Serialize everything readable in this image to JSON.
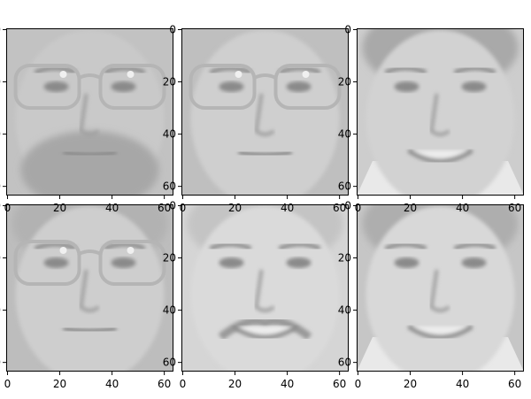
{
  "figure": {
    "panels": [
      {
        "id": "face-1",
        "row": 0,
        "col": 0,
        "subject": "man with glasses and stubble beard",
        "skin": "#c9c9c9",
        "hair": "#aaaaaa",
        "bg": "#c2c2c2",
        "glasses": true,
        "beard": true,
        "mustache": false,
        "smile": false,
        "hair_top": false,
        "collar": false
      },
      {
        "id": "face-2",
        "row": 0,
        "col": 1,
        "subject": "bald man with large glasses",
        "skin": "#cfcfcf",
        "hair": "#bdbdbd",
        "bg": "#bfbfbf",
        "glasses": true,
        "beard": false,
        "mustache": false,
        "smile": false,
        "hair_top": false,
        "collar": false
      },
      {
        "id": "face-3",
        "row": 0,
        "col": 2,
        "subject": "smiling woman",
        "skin": "#d2d2d2",
        "hair": "#a9a9a9",
        "bg": "#cdcdcd",
        "glasses": false,
        "beard": false,
        "mustache": false,
        "smile": true,
        "hair_top": true,
        "collar": true
      },
      {
        "id": "face-4",
        "row": 1,
        "col": 0,
        "subject": "young man with glasses",
        "skin": "#cecece",
        "hair": "#b2b2b2",
        "bg": "#bdbdbd",
        "glasses": true,
        "beard": false,
        "mustache": false,
        "smile": false,
        "hair_top": true,
        "collar": false
      },
      {
        "id": "face-5",
        "row": 1,
        "col": 1,
        "subject": "smiling man with mustache",
        "skin": "#dadada",
        "hair": "#c4c4c4",
        "bg": "#d5d5d5",
        "glasses": false,
        "beard": false,
        "mustache": true,
        "smile": true,
        "hair_top": true,
        "collar": false
      },
      {
        "id": "face-6",
        "row": 1,
        "col": 2,
        "subject": "smiling man with short hair",
        "skin": "#d8d8d8",
        "hair": "#aeaeae",
        "bg": "#c6c6c6",
        "glasses": false,
        "beard": false,
        "mustache": false,
        "smile": true,
        "hair_top": true,
        "collar": true
      }
    ],
    "y_ticks": [
      "0",
      "20",
      "40",
      "60"
    ],
    "x_ticks": [
      "0",
      "20",
      "40",
      "60"
    ],
    "tick_values": [
      0,
      20,
      40,
      60
    ],
    "image_extent": [
      -0.5,
      63.5
    ]
  }
}
